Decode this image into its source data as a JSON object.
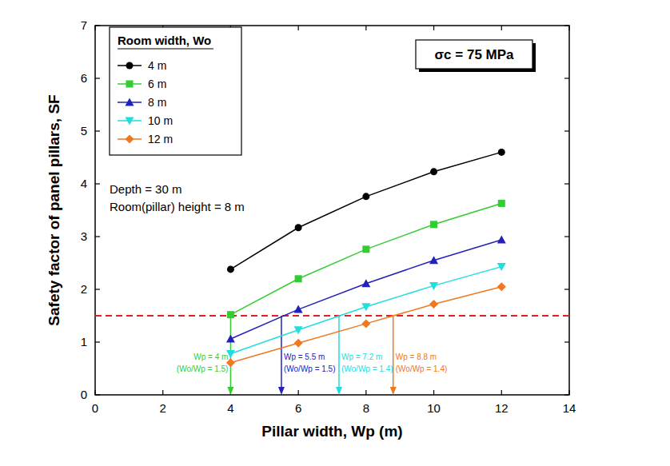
{
  "chart_data": {
    "type": "line",
    "xlabel": "Pillar width, Wp (m)",
    "ylabel": "Safety factor of panel pillars, SF",
    "x": [
      4,
      6,
      8,
      10,
      12
    ],
    "xlim": [
      0,
      14
    ],
    "xticks": [
      0,
      2,
      4,
      6,
      8,
      10,
      12,
      14
    ],
    "ylim": [
      0,
      7
    ],
    "yticks": [
      0,
      1,
      2,
      3,
      4,
      5,
      6,
      7
    ],
    "grid": false,
    "legend": "upper left",
    "legend_title": "Room width, Wo",
    "series": [
      {
        "name": "4 m",
        "color": "#000000",
        "marker": "circle",
        "line_style": "solid",
        "values": [
          2.38,
          3.17,
          3.76,
          4.23,
          4.6
        ]
      },
      {
        "name": "6 m",
        "color": "#33cc33",
        "marker": "square",
        "line_style": "solid",
        "values": [
          1.52,
          2.2,
          2.76,
          3.23,
          3.63
        ]
      },
      {
        "name": "8 m",
        "color": "#2222bb",
        "marker": "triangle-up",
        "line_style": "solid",
        "values": [
          1.06,
          1.62,
          2.11,
          2.55,
          2.94
        ]
      },
      {
        "name": "10 m",
        "color": "#22dddd",
        "marker": "triangle-down",
        "line_style": "solid",
        "values": [
          0.78,
          1.23,
          1.67,
          2.07,
          2.43
        ]
      },
      {
        "name": "12 m",
        "color": "#f07820",
        "marker": "diamond",
        "line_style": "solid",
        "values": [
          0.61,
          0.98,
          1.35,
          1.72,
          2.05
        ]
      }
    ],
    "hlines": [
      {
        "value": 1.5,
        "color": "#e02020",
        "line_style": "dashed"
      }
    ],
    "annotations": [
      {
        "x": 4,
        "y": 1.5,
        "text": [
          "Wp = 4 m",
          "(Wo/Wp = 1.5)"
        ],
        "color": "#33cc33"
      },
      {
        "x": 5.5,
        "y": 1.5,
        "text": [
          "Wp = 5.5 m",
          "(Wo/Wp = 1.5)"
        ],
        "color": "#2222bb"
      },
      {
        "x": 7.2,
        "y": 1.5,
        "text": [
          "Wp = 7.2 m",
          "(Wo/Wp = 1.4)"
        ],
        "color": "#22dddd"
      },
      {
        "x": 8.8,
        "y": 1.5,
        "text": [
          "Wp = 8.8 m",
          "(Wo/Wp = 1.4)"
        ],
        "color": "#f07820"
      }
    ],
    "text_box": "σc = 75 MPa",
    "notes": [
      "Depth = 30 m",
      "Room(pillar) height = 8 m"
    ]
  }
}
